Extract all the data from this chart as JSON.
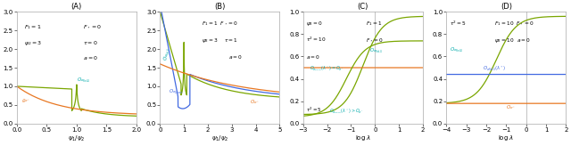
{
  "panels": [
    "(A)",
    "(B)",
    "(C)",
    "(D)"
  ],
  "panel_A": {
    "title": "(A)",
    "xlabel": "$\\psi_1/\\psi_2$",
    "xlim": [
      0,
      2.0
    ],
    "ylim": [
      0,
      3.0
    ],
    "yticks": [
      0.0,
      0.5,
      1.0,
      1.5,
      2.0,
      2.5,
      3.0
    ],
    "xticks": [
      0.0,
      0.5,
      1.0,
      1.5,
      2.0
    ]
  },
  "panel_B": {
    "title": "(B)",
    "xlabel": "$\\psi_1/\\psi_2$",
    "xlim": [
      0,
      5.0
    ],
    "ylim": [
      0,
      3.0
    ],
    "yticks": [
      0.0,
      0.5,
      1.0,
      1.5,
      2.0,
      2.5,
      3.0
    ],
    "xticks": [
      0,
      1,
      2,
      3,
      4,
      5
    ]
  },
  "panel_C": {
    "title": "(C)",
    "xlabel": "$\\log\\,\\lambda$",
    "xlim": [
      -3,
      2
    ],
    "ylim": [
      0,
      1.0
    ],
    "yticks": [
      0.0,
      0.2,
      0.4,
      0.6,
      0.8,
      1.0
    ],
    "xticks": [
      -3,
      -2,
      -1,
      0,
      1,
      2
    ],
    "vline": 0
  },
  "panel_D": {
    "title": "(D)",
    "xlabel": "$\\log\\,\\lambda$",
    "xlim": [
      -4,
      2
    ],
    "ylim": [
      0,
      1.0
    ],
    "yticks": [
      0.0,
      0.2,
      0.4,
      0.6,
      0.8,
      1.0
    ],
    "xticks": [
      -4,
      -3,
      -2,
      -1,
      0,
      1,
      2
    ],
    "vline": 0
  },
  "color_green": "#7aa600",
  "color_orange": "#e87722",
  "color_blue": "#4169e1",
  "color_teal": "#00aaaa",
  "bg_color": "#ffffff",
  "spine_color": "#aaaaaa"
}
